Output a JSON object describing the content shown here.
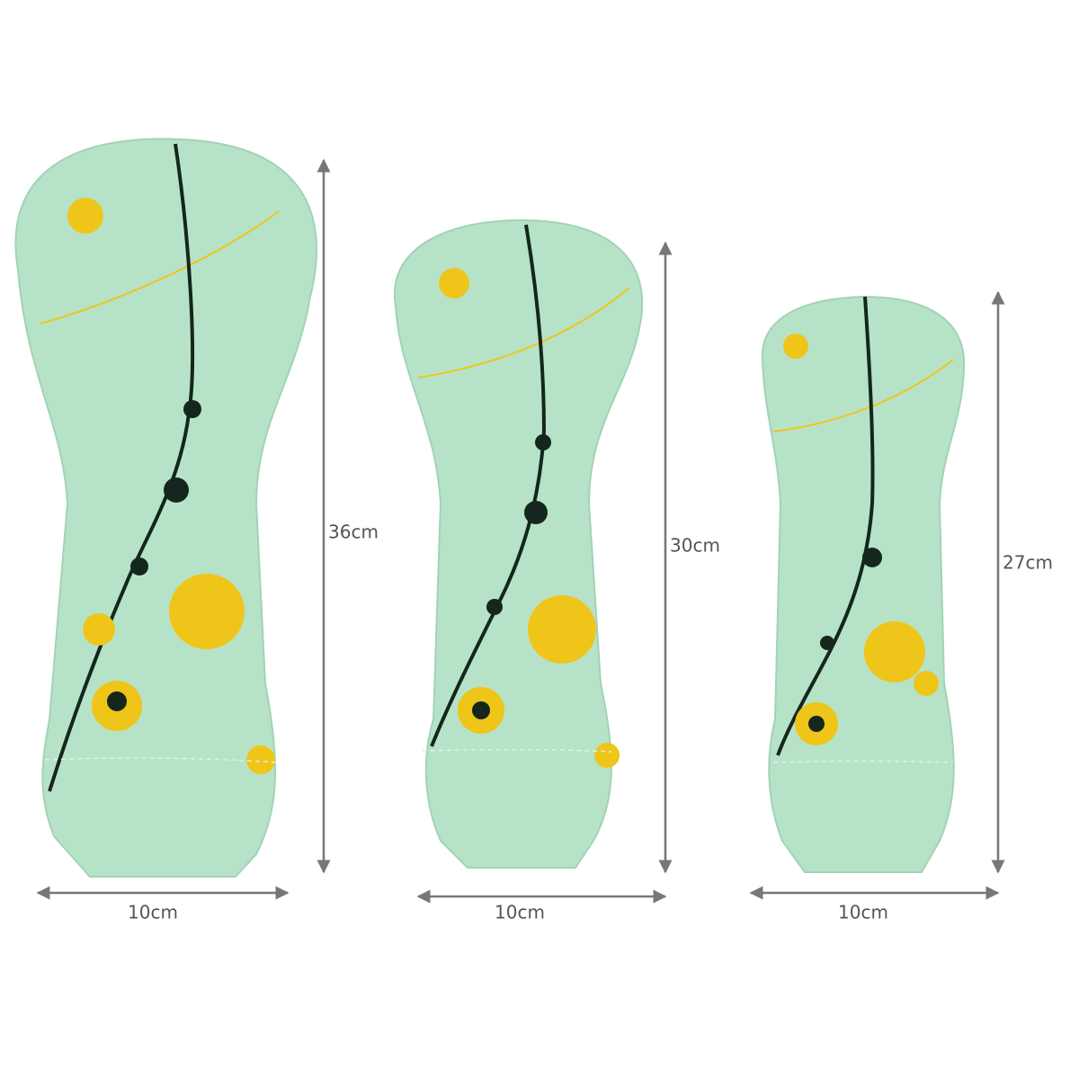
{
  "covers": [
    {
      "height": "36cm",
      "width": "10cm"
    },
    {
      "height": "30cm",
      "width": "10cm"
    },
    {
      "height": "27cm",
      "width": "10cm"
    }
  ]
}
